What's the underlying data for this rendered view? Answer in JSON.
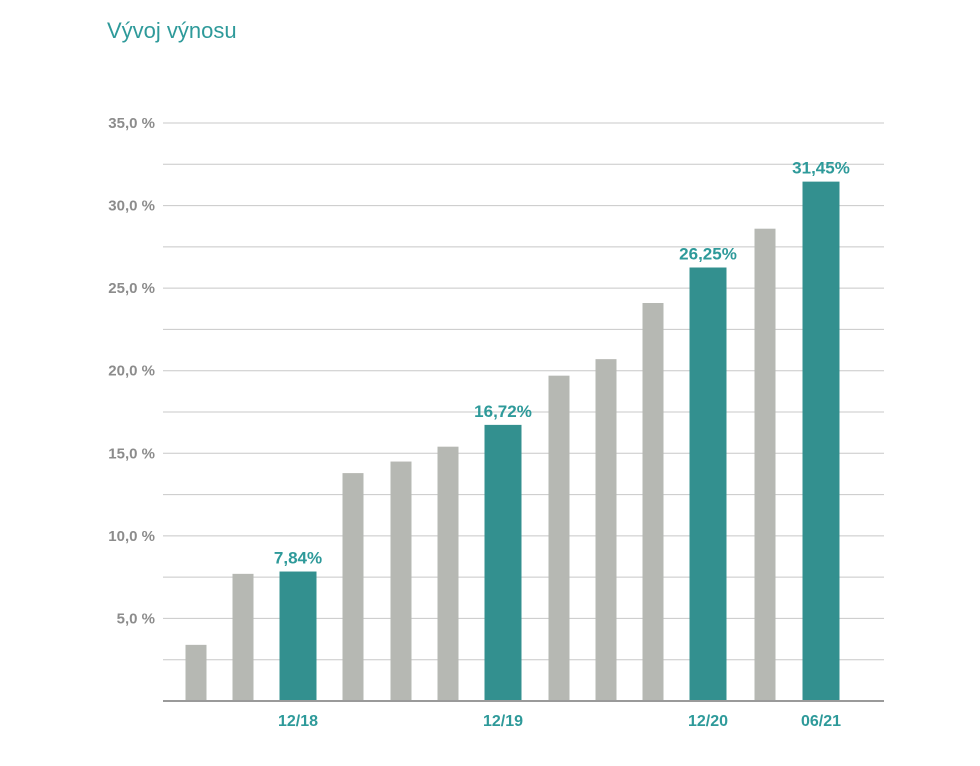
{
  "chart_data": {
    "type": "bar",
    "title": "Vývoj výnosu",
    "xlabel": "",
    "ylabel": "",
    "ylim": [
      0,
      35
    ],
    "grid": true,
    "y_ticks": [
      {
        "value": 5,
        "label": "5,0 %"
      },
      {
        "value": 10,
        "label": "10,0 %"
      },
      {
        "value": 15,
        "label": "15,0 %"
      },
      {
        "value": 20,
        "label": "20,0 %"
      },
      {
        "value": 25,
        "label": "25,0 %"
      },
      {
        "value": 30,
        "label": "30,0 %"
      },
      {
        "value": 35,
        "label": "35,0 %"
      }
    ],
    "bars": [
      {
        "value": 3.4,
        "highlight": false,
        "x_label": "",
        "data_label": ""
      },
      {
        "value": 7.7,
        "highlight": false,
        "x_label": "",
        "data_label": ""
      },
      {
        "value": 7.84,
        "highlight": true,
        "x_label": "12/18",
        "data_label": "7,84%"
      },
      {
        "value": 13.8,
        "highlight": false,
        "x_label": "",
        "data_label": ""
      },
      {
        "value": 14.5,
        "highlight": false,
        "x_label": "",
        "data_label": ""
      },
      {
        "value": 15.4,
        "highlight": false,
        "x_label": "",
        "data_label": ""
      },
      {
        "value": 16.72,
        "highlight": true,
        "x_label": "12/19",
        "data_label": "16,72%"
      },
      {
        "value": 19.7,
        "highlight": false,
        "x_label": "",
        "data_label": ""
      },
      {
        "value": 20.7,
        "highlight": false,
        "x_label": "",
        "data_label": ""
      },
      {
        "value": 24.1,
        "highlight": false,
        "x_label": "",
        "data_label": ""
      },
      {
        "value": 26.25,
        "highlight": true,
        "x_label": "12/20",
        "data_label": "26,25%"
      },
      {
        "value": 28.6,
        "highlight": false,
        "x_label": "",
        "data_label": ""
      },
      {
        "value": 31.45,
        "highlight": true,
        "x_label": "06/21",
        "data_label": "31,45%"
      }
    ],
    "colors": {
      "highlight": "#33908f",
      "normal": "#b6b8b3",
      "grid": "#c8c8c8",
      "axis": "#9a9a9a"
    }
  }
}
